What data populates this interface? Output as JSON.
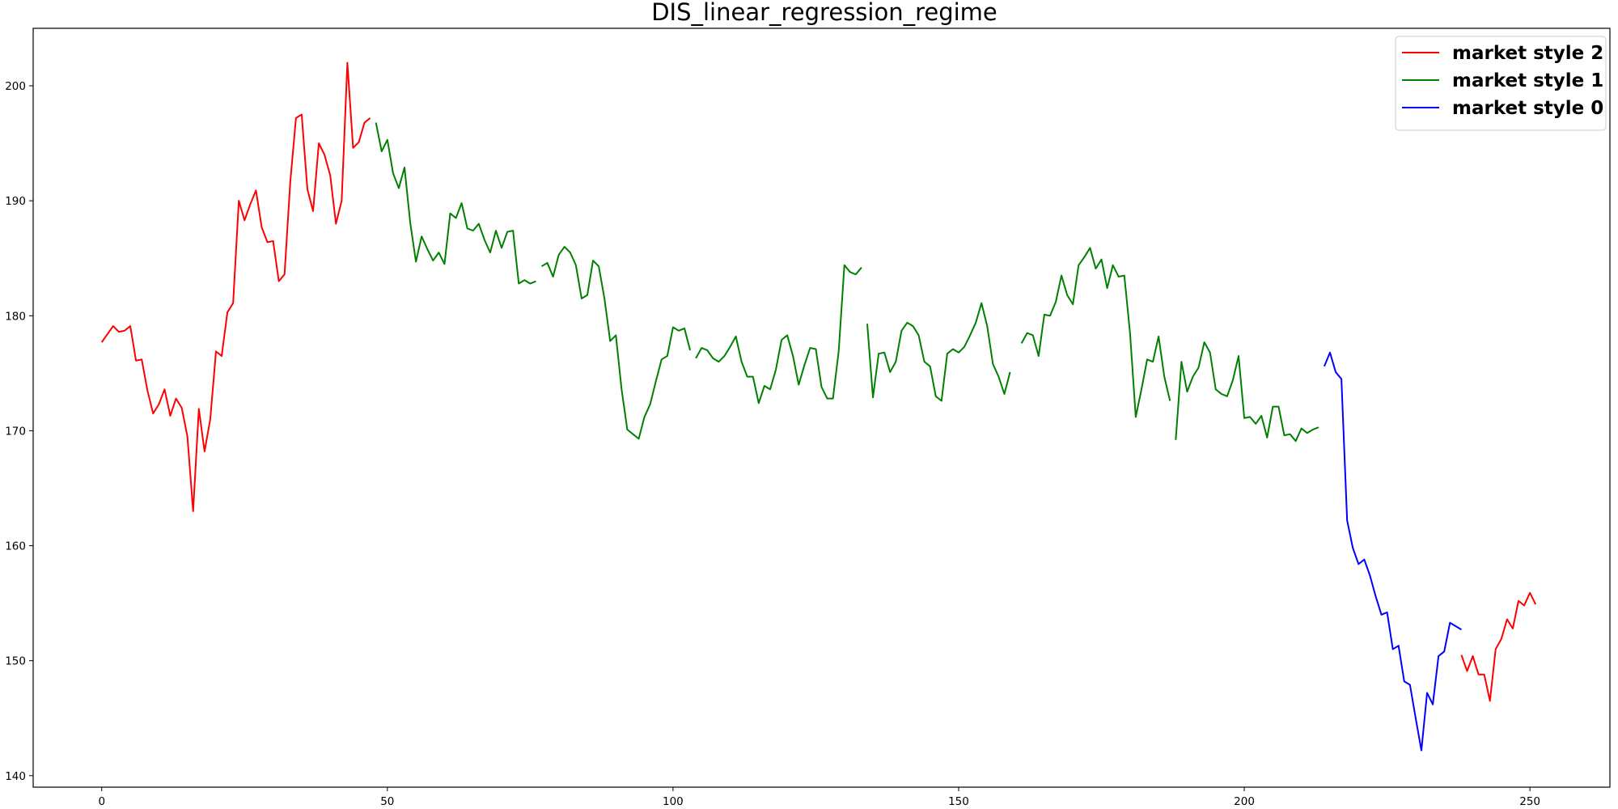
{
  "chart_data": {
    "type": "line",
    "title": "DIS_linear_regression_regime",
    "xlabel": "",
    "ylabel": "",
    "xlim": [
      -12,
      264
    ],
    "ylim": [
      139,
      205
    ],
    "grid": false,
    "legend_placement": "top-right",
    "x_ticks": [
      0,
      50,
      100,
      150,
      200,
      250
    ],
    "y_ticks": [
      140,
      150,
      160,
      170,
      180,
      190,
      200
    ],
    "series": [
      {
        "name": "market style 2",
        "color": "#ff0000",
        "segments": [
          {
            "x_start": 0,
            "values": [
              177.7,
              178.4,
              179.1,
              178.6,
              178.7,
              179.1,
              176.1,
              176.2,
              173.5,
              171.5,
              172.3,
              173.6,
              171.3,
              172.8,
              172.0,
              169.5,
              163.0,
              171.9,
              168.2,
              171.0,
              176.9,
              176.5,
              180.3,
              181.1,
              190.0,
              188.3,
              189.7,
              190.9,
              187.7,
              186.4,
              186.5,
              183.0,
              183.6,
              191.6,
              197.2,
              197.5,
              191.0,
              189.1,
              195.0,
              194.0,
              192.2,
              188.0,
              190.0,
              202.0,
              194.6,
              195.1,
              196.8,
              197.2
            ]
          },
          {
            "x_start": 238,
            "values": [
              150.5,
              149.1,
              150.4,
              148.8,
              148.8,
              146.5,
              151.0,
              151.9,
              153.6,
              152.8,
              155.2,
              154.8,
              155.9,
              154.9
            ]
          }
        ]
      },
      {
        "name": "market style 1",
        "color": "#008000",
        "segments": [
          {
            "x_start": 48,
            "values": [
              196.8,
              194.3,
              195.3,
              192.4,
              191.1,
              192.9,
              188.1,
              184.7,
              186.9,
              185.8,
              184.8,
              185.5,
              184.5,
              188.9,
              188.5,
              189.8,
              187.6,
              187.4,
              188.0,
              186.6,
              185.5,
              187.4,
              185.9,
              187.3,
              187.4,
              182.8,
              183.1,
              182.8,
              183.0
            ]
          },
          {
            "x_start": 77,
            "values": [
              184.3,
              184.6,
              183.4,
              185.3,
              186.0,
              185.5,
              184.4,
              181.5,
              181.8,
              184.8,
              184.3,
              181.5,
              177.8,
              178.3,
              173.6,
              170.1,
              169.7,
              169.3,
              171.2,
              172.3,
              174.3,
              176.2,
              176.5,
              179.0,
              178.7,
              178.9,
              177.0
            ]
          },
          {
            "x_start": 104,
            "values": [
              176.3,
              177.2,
              177.0,
              176.3,
              176.0,
              176.5,
              177.3,
              178.2,
              176.0,
              174.7,
              174.7,
              172.4,
              173.9,
              173.6,
              175.3,
              177.9,
              178.3,
              176.5,
              174.0,
              175.7,
              177.2,
              177.1,
              173.8,
              172.8,
              172.8,
              176.9,
              184.4,
              183.8,
              183.6,
              184.2
            ]
          },
          {
            "x_start": 134,
            "values": [
              179.3,
              172.9,
              176.7,
              176.8,
              175.1,
              176.0,
              178.7,
              179.4,
              179.1,
              178.3,
              176.0,
              175.6,
              173.0,
              172.6,
              176.7,
              177.1,
              176.8,
              177.3,
              178.3,
              179.4,
              181.1,
              179.1,
              175.8,
              174.7,
              173.2,
              175.1
            ]
          },
          {
            "x_start": 161,
            "values": [
              177.6,
              178.5,
              178.3,
              176.5,
              180.1,
              180.0,
              181.2,
              183.5,
              181.8,
              181.0,
              184.4,
              185.1,
              185.9,
              184.1,
              184.9,
              182.4,
              184.4,
              183.4,
              183.5,
              178.5,
              171.2,
              173.6,
              176.2,
              176.0,
              178.2,
              174.7,
              172.6
            ]
          },
          {
            "x_start": 188,
            "values": [
              169.2,
              176.0,
              173.4,
              174.7,
              175.5,
              177.7,
              176.8,
              173.6,
              173.2,
              173.0,
              174.4,
              176.5,
              171.1,
              171.2,
              170.6,
              171.3,
              169.4,
              172.1,
              172.1,
              169.6,
              169.7,
              169.1,
              170.2,
              169.8,
              170.1,
              170.3
            ]
          }
        ]
      },
      {
        "name": "market style 0",
        "color": "#0000ff",
        "segments": [
          {
            "x_start": 214,
            "values": [
              175.6,
              176.8,
              175.1,
              174.5,
              162.2,
              159.8,
              158.4,
              158.8,
              157.4,
              155.6,
              154.0,
              154.2,
              151.0,
              151.3,
              148.2,
              147.9,
              145.0,
              142.2,
              147.2,
              146.2,
              150.4,
              150.8,
              153.3,
              153.0,
              152.7
            ]
          }
        ]
      }
    ]
  }
}
